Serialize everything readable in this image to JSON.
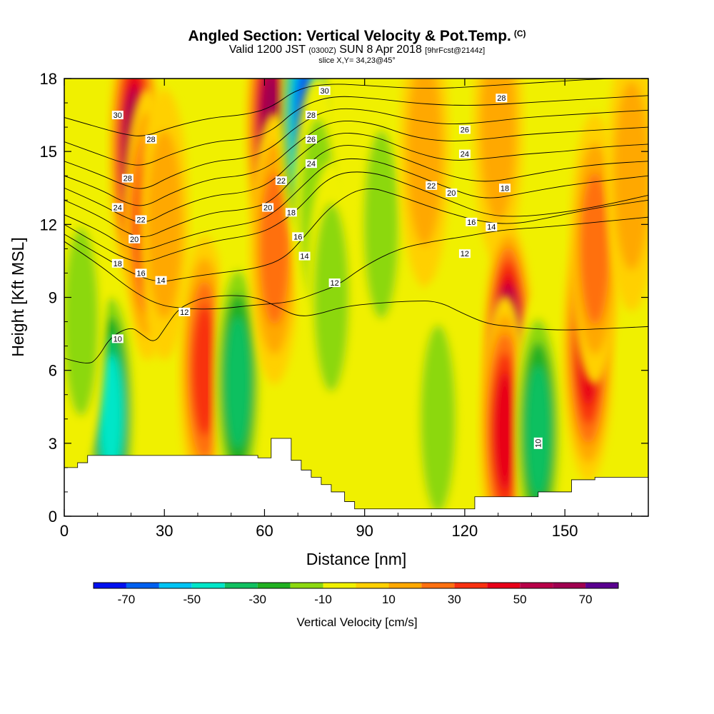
{
  "header": {
    "title": "Angled Section: Vertical Velocity & Pot.Temp.",
    "title_unit": "(C)",
    "valid_prefix": "Valid 1200 JST",
    "valid_utc": "(0300Z)",
    "valid_date": "SUN 8 Apr 2018",
    "forecast": "[9hrFcst@2144z]",
    "slice": "slice X,Y= 34,23@45°"
  },
  "colorbar": {
    "title": "Vertical Velocity [cm/s]",
    "bins": [
      -80,
      -70,
      -60,
      -50,
      -40,
      -30,
      -20,
      -10,
      0,
      10,
      20,
      30,
      40,
      50,
      60,
      70,
      80
    ],
    "colors": [
      "#0010f0",
      "#0060f0",
      "#00c4f4",
      "#00e6c8",
      "#10c060",
      "#20b020",
      "#8cd810",
      "#f0f000",
      "#ffd000",
      "#ffa800",
      "#ff7010",
      "#f83010",
      "#e80018",
      "#b80048",
      "#a00050",
      "#5a0090"
    ],
    "tick_labels": [
      "-70",
      "-50",
      "-30",
      "-10",
      "10",
      "30",
      "50",
      "70"
    ],
    "tick_values": [
      -70,
      -50,
      -30,
      -10,
      10,
      30,
      50,
      70
    ]
  },
  "chart_data": {
    "type": "heatmap",
    "xlabel": "Distance [nm]",
    "ylabel": "Height [Kft MSL]",
    "xlim": [
      0,
      175
    ],
    "ylim": [
      0,
      18
    ],
    "xticks": [
      0,
      30,
      60,
      90,
      120,
      150
    ],
    "yticks": [
      0,
      3,
      6,
      9,
      12,
      15,
      18
    ],
    "terrain": {
      "x": [
        0,
        4,
        4,
        7,
        7,
        58,
        58,
        62,
        62,
        68,
        68,
        71,
        71,
        74,
        74,
        77,
        77,
        80,
        80,
        84,
        84,
        87,
        87,
        123,
        123,
        142,
        142,
        152,
        152,
        159,
        159,
        175
      ],
      "height": [
        2.0,
        2.0,
        2.2,
        2.2,
        2.5,
        2.5,
        2.4,
        2.4,
        3.2,
        3.2,
        2.3,
        2.3,
        1.9,
        1.9,
        1.6,
        1.6,
        1.3,
        1.3,
        1.0,
        1.0,
        0.6,
        0.6,
        0.3,
        0.3,
        0.8,
        0.8,
        1.0,
        1.0,
        1.5,
        1.5,
        1.6,
        1.6
      ]
    },
    "vertical_velocity_cores": [
      {
        "x": 21,
        "z": 15,
        "value": 70
      },
      {
        "x": 25,
        "z": 12,
        "value": 40
      },
      {
        "x": 30,
        "z": 12,
        "value": 20
      },
      {
        "x": 14,
        "z": 4.2,
        "value": -45
      },
      {
        "x": 42,
        "z": 6,
        "value": 40
      },
      {
        "x": 52,
        "z": 5.5,
        "value": -35
      },
      {
        "x": 62,
        "z": 16,
        "value": 70
      },
      {
        "x": 63,
        "z": 11,
        "value": 30
      },
      {
        "x": 72,
        "z": 16.5,
        "value": -70
      },
      {
        "x": 76,
        "z": 12.5,
        "value": -20
      },
      {
        "x": 80,
        "z": 9,
        "value": -15
      },
      {
        "x": 95,
        "z": 12,
        "value": -18
      },
      {
        "x": 108,
        "z": 15,
        "value": 20
      },
      {
        "x": 130,
        "z": 16,
        "value": 15
      },
      {
        "x": 133,
        "z": 6.5,
        "value": 75
      },
      {
        "x": 132,
        "z": 3.5,
        "value": 50
      },
      {
        "x": 142,
        "z": 3.5,
        "value": -35
      },
      {
        "x": 157,
        "z": 7,
        "value": 50
      },
      {
        "x": 159,
        "z": 11,
        "value": 30
      },
      {
        "x": 170,
        "z": 14,
        "value": 15
      },
      {
        "x": 112,
        "z": 4,
        "value": -18
      },
      {
        "x": 5,
        "z": 8,
        "value": -15
      }
    ],
    "potential_temperature_contours": [
      {
        "value": 10,
        "label": "10",
        "points": [
          [
            0,
            6.5
          ],
          [
            7,
            6.2
          ],
          [
            10,
            6.5
          ],
          [
            14,
            7.4
          ],
          [
            20,
            7.8
          ],
          [
            23,
            7.5
          ],
          [
            27,
            7.1
          ],
          [
            30,
            7.7
          ],
          [
            34,
            8.5
          ],
          [
            38,
            8.8
          ],
          [
            42,
            9.0
          ],
          [
            50,
            9.1
          ],
          [
            58,
            9.0
          ],
          [
            64,
            8.6
          ],
          [
            70,
            8.2
          ],
          [
            76,
            8.3
          ],
          [
            83,
            8.6
          ],
          [
            92,
            8.75
          ],
          [
            104,
            8.85
          ],
          [
            112,
            8.85
          ],
          [
            120,
            8.3
          ],
          [
            127,
            7.9
          ],
          [
            134,
            7.8
          ],
          [
            141,
            7.7
          ],
          [
            150,
            7.65
          ],
          [
            160,
            7.7
          ],
          [
            175,
            7.8
          ]
        ]
      },
      {
        "value": 12,
        "label": "12",
        "points": [
          [
            0,
            11.3
          ],
          [
            10,
            10.4
          ],
          [
            20,
            9.3
          ],
          [
            28,
            8.7
          ],
          [
            35,
            8.55
          ],
          [
            45,
            8.5
          ],
          [
            58,
            8.7
          ],
          [
            68,
            8.8
          ],
          [
            76,
            9.2
          ],
          [
            82,
            9.5
          ],
          [
            90,
            10.3
          ],
          [
            100,
            11.0
          ],
          [
            110,
            11.3
          ],
          [
            120,
            11.5
          ],
          [
            128,
            11.7
          ],
          [
            134,
            11.8
          ],
          [
            145,
            11.9
          ],
          [
            160,
            12.1
          ],
          [
            175,
            12.3
          ]
        ]
      },
      {
        "value": 14,
        "label": "14",
        "points": [
          [
            0,
            11.6
          ],
          [
            10,
            10.8
          ],
          [
            20,
            10.0
          ],
          [
            28,
            9.6
          ],
          [
            36,
            9.8
          ],
          [
            46,
            10.0
          ],
          [
            58,
            10.2
          ],
          [
            66,
            10.6
          ],
          [
            72,
            11.5
          ],
          [
            80,
            12.8
          ],
          [
            90,
            13.6
          ],
          [
            100,
            13.2
          ],
          [
            112,
            12.6
          ],
          [
            125,
            12.1
          ],
          [
            135,
            12.0
          ],
          [
            146,
            12.3
          ],
          [
            160,
            12.7
          ],
          [
            175,
            13.0
          ]
        ]
      },
      {
        "value": 16,
        "label": "16",
        "points": [
          [
            0,
            12.0
          ],
          [
            10,
            11.2
          ],
          [
            18,
            10.6
          ],
          [
            24,
            10.4
          ],
          [
            32,
            10.8
          ],
          [
            44,
            11.3
          ],
          [
            58,
            11.6
          ],
          [
            64,
            12.0
          ],
          [
            70,
            12.6
          ],
          [
            80,
            14.1
          ],
          [
            92,
            14.2
          ],
          [
            104,
            13.6
          ],
          [
            115,
            13.0
          ],
          [
            126,
            12.4
          ],
          [
            136,
            12.3
          ],
          [
            150,
            12.5
          ],
          [
            162,
            12.8
          ],
          [
            175,
            13.2
          ]
        ]
      },
      {
        "value": 18,
        "label": "18",
        "points": [
          [
            0,
            12.4
          ],
          [
            10,
            11.8
          ],
          [
            18,
            11.1
          ],
          [
            24,
            10.9
          ],
          [
            32,
            11.3
          ],
          [
            44,
            11.8
          ],
          [
            58,
            12.1
          ],
          [
            64,
            12.6
          ],
          [
            70,
            13.4
          ],
          [
            80,
            14.7
          ],
          [
            92,
            14.7
          ],
          [
            104,
            14.1
          ],
          [
            115,
            13.5
          ],
          [
            126,
            13.0
          ],
          [
            138,
            13.3
          ],
          [
            150,
            13.6
          ],
          [
            162,
            13.8
          ],
          [
            175,
            14.0
          ]
        ]
      },
      {
        "value": 20,
        "label": "20",
        "points": [
          [
            0,
            13.0
          ],
          [
            10,
            12.4
          ],
          [
            18,
            11.7
          ],
          [
            24,
            11.4
          ],
          [
            32,
            11.9
          ],
          [
            44,
            12.5
          ],
          [
            54,
            12.6
          ],
          [
            62,
            12.9
          ],
          [
            70,
            14.1
          ],
          [
            80,
            15.3
          ],
          [
            92,
            15.2
          ],
          [
            104,
            14.6
          ],
          [
            115,
            14.0
          ],
          [
            126,
            13.7
          ],
          [
            138,
            14.0
          ],
          [
            150,
            14.3
          ],
          [
            162,
            14.5
          ],
          [
            175,
            14.6
          ]
        ]
      },
      {
        "value": 22,
        "label": "22",
        "points": [
          [
            0,
            13.5
          ],
          [
            10,
            12.9
          ],
          [
            18,
            12.3
          ],
          [
            24,
            12.0
          ],
          [
            32,
            12.6
          ],
          [
            44,
            13.2
          ],
          [
            54,
            13.3
          ],
          [
            62,
            13.7
          ],
          [
            70,
            14.8
          ],
          [
            80,
            15.8
          ],
          [
            92,
            15.7
          ],
          [
            104,
            15.0
          ],
          [
            115,
            14.6
          ],
          [
            126,
            14.7
          ],
          [
            138,
            14.9
          ],
          [
            150,
            15.0
          ],
          [
            162,
            15.2
          ],
          [
            175,
            15.3
          ]
        ]
      },
      {
        "value": 24,
        "label": "24",
        "points": [
          [
            0,
            14.0
          ],
          [
            10,
            13.5
          ],
          [
            18,
            12.9
          ],
          [
            24,
            12.7
          ],
          [
            32,
            13.3
          ],
          [
            44,
            13.9
          ],
          [
            54,
            14.0
          ],
          [
            62,
            14.4
          ],
          [
            70,
            15.4
          ],
          [
            80,
            16.3
          ],
          [
            92,
            16.2
          ],
          [
            104,
            15.6
          ],
          [
            115,
            15.4
          ],
          [
            126,
            15.5
          ],
          [
            138,
            15.7
          ],
          [
            150,
            15.8
          ],
          [
            162,
            15.9
          ],
          [
            175,
            16.0
          ]
        ]
      },
      {
        "value": 26,
        "label": "26",
        "points": [
          [
            0,
            14.6
          ],
          [
            10,
            14.1
          ],
          [
            18,
            13.6
          ],
          [
            24,
            13.4
          ],
          [
            32,
            14.0
          ],
          [
            44,
            14.6
          ],
          [
            54,
            14.7
          ],
          [
            62,
            15.1
          ],
          [
            70,
            16.1
          ],
          [
            80,
            16.8
          ],
          [
            92,
            16.7
          ],
          [
            104,
            16.3
          ],
          [
            115,
            16.1
          ],
          [
            126,
            16.2
          ],
          [
            138,
            16.4
          ],
          [
            150,
            16.5
          ],
          [
            162,
            16.6
          ],
          [
            175,
            16.7
          ]
        ]
      },
      {
        "value": 28,
        "label": "28",
        "points": [
          [
            0,
            15.4
          ],
          [
            10,
            14.9
          ],
          [
            18,
            14.5
          ],
          [
            24,
            14.4
          ],
          [
            32,
            14.9
          ],
          [
            44,
            15.4
          ],
          [
            54,
            15.5
          ],
          [
            62,
            15.8
          ],
          [
            70,
            16.8
          ],
          [
            80,
            17.3
          ],
          [
            92,
            17.2
          ],
          [
            104,
            17.0
          ],
          [
            115,
            16.9
          ],
          [
            126,
            16.9
          ],
          [
            138,
            17.0
          ],
          [
            150,
            17.1
          ],
          [
            162,
            17.2
          ],
          [
            175,
            17.3
          ]
        ]
      },
      {
        "value": 30,
        "label": "30",
        "points": [
          [
            0,
            16.4
          ],
          [
            10,
            16.0
          ],
          [
            18,
            15.7
          ],
          [
            24,
            15.6
          ],
          [
            32,
            16.0
          ],
          [
            44,
            16.4
          ],
          [
            54,
            16.5
          ],
          [
            62,
            16.8
          ],
          [
            70,
            17.6
          ],
          [
            80,
            17.8
          ],
          [
            92,
            17.7
          ],
          [
            104,
            17.6
          ],
          [
            115,
            17.6
          ],
          [
            126,
            17.7
          ],
          [
            138,
            17.8
          ],
          [
            150,
            17.9
          ],
          [
            162,
            18.0
          ],
          [
            175,
            18.0
          ]
        ]
      }
    ],
    "contour_labels": [
      {
        "text": "30",
        "x": 16,
        "z": 16.5
      },
      {
        "text": "28",
        "x": 26,
        "z": 15.5
      },
      {
        "text": "28",
        "x": 19,
        "z": 13.9
      },
      {
        "text": "24",
        "x": 16,
        "z": 12.7
      },
      {
        "text": "22",
        "x": 23,
        "z": 12.2
      },
      {
        "text": "20",
        "x": 21,
        "z": 11.4
      },
      {
        "text": "18",
        "x": 16,
        "z": 10.4
      },
      {
        "text": "16",
        "x": 23,
        "z": 10.0
      },
      {
        "text": "14",
        "x": 29,
        "z": 9.7
      },
      {
        "text": "12",
        "x": 36,
        "z": 8.4
      },
      {
        "text": "10",
        "x": 16,
        "z": 7.3
      },
      {
        "text": "30",
        "x": 78,
        "z": 17.5
      },
      {
        "text": "28",
        "x": 74,
        "z": 16.5
      },
      {
        "text": "26",
        "x": 74,
        "z": 15.5
      },
      {
        "text": "24",
        "x": 74,
        "z": 14.5
      },
      {
        "text": "22",
        "x": 65,
        "z": 13.8
      },
      {
        "text": "20",
        "x": 61,
        "z": 12.7
      },
      {
        "text": "18",
        "x": 68,
        "z": 12.5
      },
      {
        "text": "16",
        "x": 70,
        "z": 11.5
      },
      {
        "text": "14",
        "x": 72,
        "z": 10.7
      },
      {
        "text": "12",
        "x": 81,
        "z": 9.6
      },
      {
        "text": "28",
        "x": 131,
        "z": 17.2
      },
      {
        "text": "26",
        "x": 120,
        "z": 15.9
      },
      {
        "text": "24",
        "x": 120,
        "z": 14.9
      },
      {
        "text": "22",
        "x": 110,
        "z": 13.6
      },
      {
        "text": "20",
        "x": 116,
        "z": 13.3
      },
      {
        "text": "18",
        "x": 132,
        "z": 13.5
      },
      {
        "text": "16",
        "x": 122,
        "z": 12.1
      },
      {
        "text": "14",
        "x": 128,
        "z": 11.9
      },
      {
        "text": "12",
        "x": 120,
        "z": 10.8
      },
      {
        "text": "10",
        "x": 142,
        "z": 3.0,
        "vertical": true
      }
    ]
  }
}
